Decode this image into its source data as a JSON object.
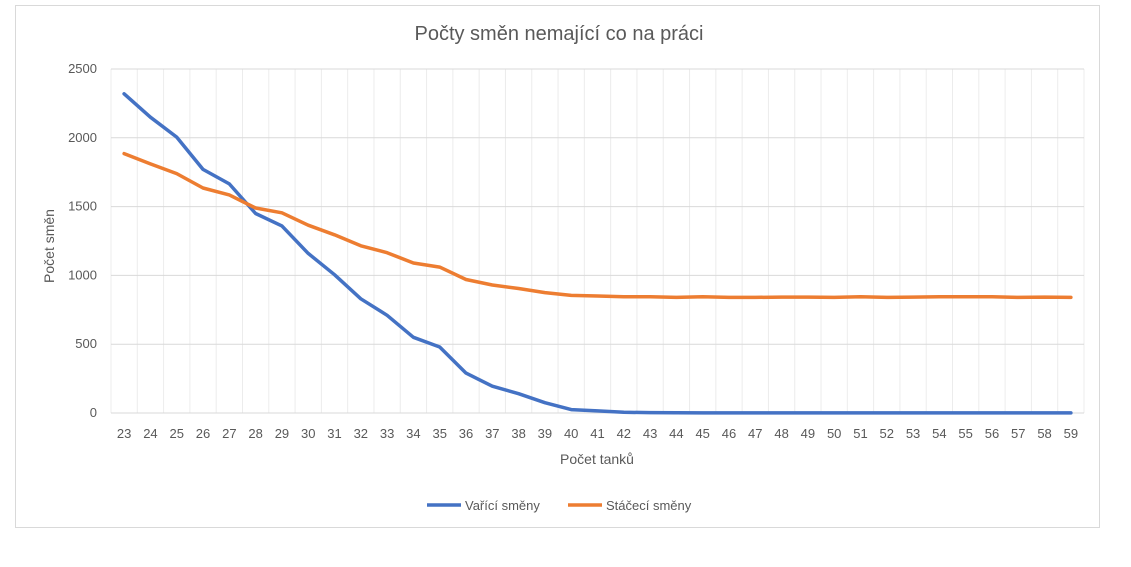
{
  "chart_data": {
    "type": "line",
    "title": "Počty směn nemající co na práci",
    "xlabel": "Počet tanků",
    "ylabel": "Počet směn",
    "ylim": [
      0,
      2500
    ],
    "yticks": [
      0,
      500,
      1000,
      1500,
      2000,
      2500
    ],
    "grid": true,
    "legend_position": "bottom",
    "categories": [
      "23",
      "24",
      "25",
      "26",
      "27",
      "28",
      "29",
      "30",
      "31",
      "32",
      "33",
      "34",
      "35",
      "36",
      "37",
      "38",
      "39",
      "40",
      "41",
      "42",
      "43",
      "44",
      "45",
      "46",
      "47",
      "48",
      "49",
      "50",
      "51",
      "52",
      "53",
      "54",
      "55",
      "56",
      "57",
      "58",
      "59"
    ],
    "series": [
      {
        "name": "Vařící směny",
        "color": "#4472c4",
        "values": [
          2320,
          2150,
          2005,
          1770,
          1665,
          1450,
          1360,
          1160,
          1005,
          830,
          710,
          550,
          480,
          290,
          195,
          140,
          75,
          25,
          15,
          5,
          3,
          2,
          1,
          1,
          1,
          1,
          1,
          1,
          1,
          1,
          1,
          1,
          1,
          1,
          1,
          1,
          1
        ]
      },
      {
        "name": "Stáčecí směny",
        "color": "#ed7d31",
        "values": [
          1885,
          1810,
          1740,
          1635,
          1585,
          1490,
          1455,
          1365,
          1295,
          1215,
          1165,
          1090,
          1060,
          970,
          930,
          905,
          875,
          855,
          850,
          845,
          845,
          840,
          845,
          840,
          840,
          842,
          842,
          840,
          845,
          840,
          842,
          845,
          845,
          845,
          840,
          842,
          840
        ]
      }
    ]
  }
}
